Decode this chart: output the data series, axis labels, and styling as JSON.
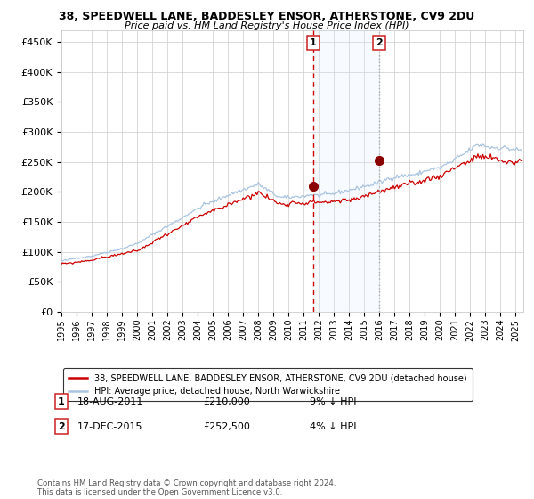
{
  "title": "38, SPEEDWELL LANE, BADDESLEY ENSOR, ATHERSTONE, CV9 2DU",
  "subtitle": "Price paid vs. HM Land Registry's House Price Index (HPI)",
  "ylim": [
    0,
    470000
  ],
  "yticks": [
    0,
    50000,
    100000,
    150000,
    200000,
    250000,
    300000,
    350000,
    400000,
    450000
  ],
  "ytick_labels": [
    "£0",
    "£50K",
    "£100K",
    "£150K",
    "£200K",
    "£250K",
    "£300K",
    "£350K",
    "£400K",
    "£450K"
  ],
  "hpi_color": "#aac4e0",
  "price_color": "#cc0000",
  "marker_color": "#8b0000",
  "dashed_line_color": "#cc0000",
  "dot_line_color": "#aaaaaa",
  "shade_color": "#ddeeff",
  "legend_label_red": "38, SPEEDWELL LANE, BADDESLEY ENSOR, ATHERSTONE, CV9 2DU (detached house)",
  "legend_label_blue": "HPI: Average price, detached house, North Warwickshire",
  "transaction1_date": "18-AUG-2011",
  "transaction1_price": 210000,
  "transaction1_pct": "9% ↓ HPI",
  "transaction1_label": "1",
  "transaction1_year": 2011.62,
  "transaction2_date": "17-DEC-2015",
  "transaction2_price": 252500,
  "transaction2_pct": "4% ↓ HPI",
  "transaction2_label": "2",
  "transaction2_year": 2015.96,
  "footnote": "Contains HM Land Registry data © Crown copyright and database right 2024.\nThis data is licensed under the Open Government Licence v3.0.",
  "background_color": "#ffffff",
  "plot_bg_color": "#ffffff",
  "grid_color": "#cccccc"
}
